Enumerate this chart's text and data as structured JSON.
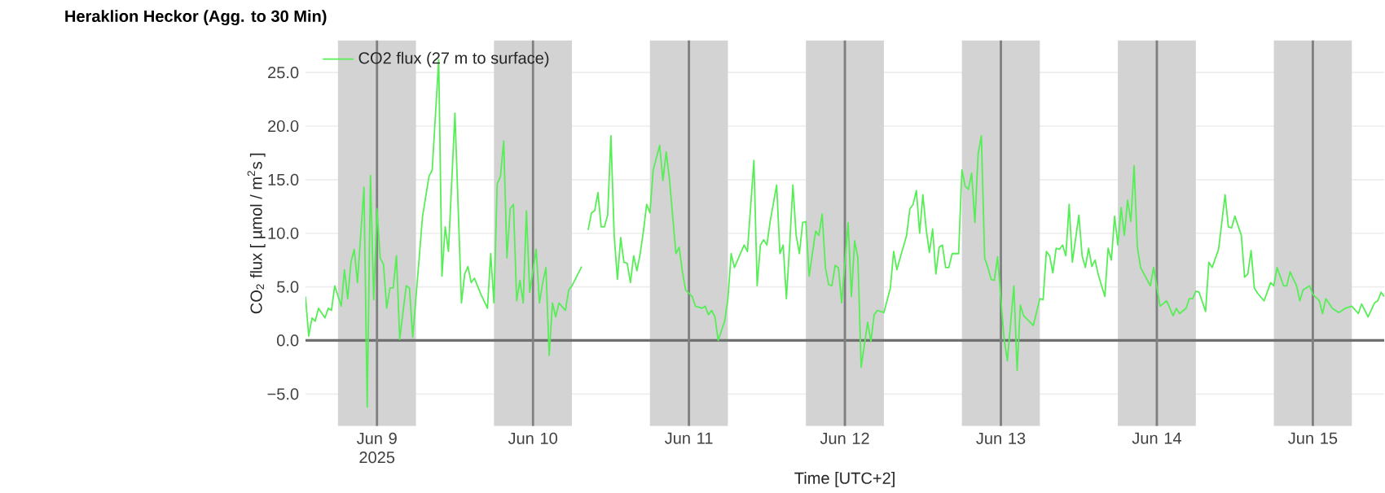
{
  "chart_data": {
    "type": "line",
    "title": "Heraklion Heckor (Agg. to 30 Min)",
    "xlabel": "Time [UTC+2]",
    "ylabel": "CO$_{2}$ flux [ µmol / m$^{2}$s ]",
    "xlim": [
      "2025-06-08T13:00",
      "2025-06-15T11:00"
    ],
    "ylim": [
      -8,
      28
    ],
    "xticks": [
      {
        "value": "2025-06-09",
        "label": "Jun 9 2025"
      },
      {
        "value": "2025-06-10",
        "label": "Jun 10"
      },
      {
        "value": "2025-06-11",
        "label": "Jun 11"
      },
      {
        "value": "2025-06-12",
        "label": "Jun 12"
      },
      {
        "value": "2025-06-13",
        "label": "Jun 13"
      },
      {
        "value": "2025-06-14",
        "label": "Jun 14"
      },
      {
        "value": "2025-06-15",
        "label": "Jun 15"
      }
    ],
    "yticks": [
      {
        "value": -5,
        "label": "−5.0"
      },
      {
        "value": 0,
        "label": "0.0"
      },
      {
        "value": 5,
        "label": "5.0"
      },
      {
        "value": 10,
        "label": "10.0"
      },
      {
        "value": 15,
        "label": "15.0"
      },
      {
        "value": 20,
        "label": "20.0"
      },
      {
        "value": 25,
        "label": "25.0"
      }
    ],
    "grid": "y",
    "legend": "top left",
    "bands": [
      {
        "axis": "x",
        "from": "2025-06-08T18:00",
        "to": "2025-06-09T06:00",
        "color": "#d3d3d3"
      },
      {
        "axis": "x",
        "from": "2025-06-09T18:00",
        "to": "2025-06-10T06:00",
        "color": "#d3d3d3"
      },
      {
        "axis": "x",
        "from": "2025-06-10T18:00",
        "to": "2025-06-11T06:00",
        "color": "#d3d3d3"
      },
      {
        "axis": "x",
        "from": "2025-06-11T18:00",
        "to": "2025-06-12T06:00",
        "color": "#d3d3d3"
      },
      {
        "axis": "x",
        "from": "2025-06-12T18:00",
        "to": "2025-06-13T06:00",
        "color": "#d3d3d3"
      },
      {
        "axis": "x",
        "from": "2025-06-13T18:00",
        "to": "2025-06-14T06:00",
        "color": "#d3d3d3"
      },
      {
        "axis": "x",
        "from": "2025-06-14T18:00",
        "to": "2025-06-15T06:00",
        "color": "#d3d3d3"
      }
    ],
    "ref_lines": [
      {
        "axis": "y",
        "value": 0,
        "color": "#707070"
      },
      {
        "axis": "x",
        "value": "2025-06-09",
        "color": "#808080"
      },
      {
        "axis": "x",
        "value": "2025-06-10",
        "color": "#808080"
      },
      {
        "axis": "x",
        "value": "2025-06-11",
        "color": "#808080"
      },
      {
        "axis": "x",
        "value": "2025-06-12",
        "color": "#808080"
      },
      {
        "axis": "x",
        "value": "2025-06-13",
        "color": "#808080"
      },
      {
        "axis": "x",
        "value": "2025-06-14",
        "color": "#808080"
      },
      {
        "axis": "x",
        "value": "2025-06-15",
        "color": "#808080"
      }
    ],
    "x": [
      "2025-06-08T13:00",
      "2025-06-08T13:30",
      "2025-06-08T14:00",
      "2025-06-08T14:30",
      "2025-06-08T15:00",
      "2025-06-08T16:00",
      "2025-06-08T16:30",
      "2025-06-08T17:00",
      "2025-06-08T17:30",
      "2025-06-08T18:30",
      "2025-06-08T19:00",
      "2025-06-08T19:30",
      "2025-06-08T20:00",
      "2025-06-08T20:30",
      "2025-06-08T21:00",
      "2025-06-08T22:00",
      "2025-06-08T22:30",
      "2025-06-08T23:00",
      "2025-06-08T23:30",
      "2025-06-09T00:00",
      "2025-06-09T00:30",
      "2025-06-09T01:00",
      "2025-06-09T01:30",
      "2025-06-09T02:00",
      "2025-06-09T02:30",
      "2025-06-09T03:00",
      "2025-06-09T03:30",
      "2025-06-09T04:30",
      "2025-06-09T05:00",
      "2025-06-09T05:30",
      "2025-06-09T06:30",
      "2025-06-09T07:00",
      "2025-06-09T08:00",
      "2025-06-09T08:30",
      "2025-06-09T09:30",
      "2025-06-09T10:00",
      "2025-06-09T10:30",
      "2025-06-09T11:00",
      "2025-06-09T12:00",
      "2025-06-09T13:00",
      "2025-06-09T13:30",
      "2025-06-09T14:00",
      "2025-06-09T14:30",
      "2025-06-09T15:00",
      "2025-06-09T16:00",
      "2025-06-09T17:00",
      "2025-06-09T17:30",
      "2025-06-09T18:00",
      "2025-06-09T18:30",
      "2025-06-09T19:00",
      "2025-06-09T19:30",
      "2025-06-09T20:00",
      "2025-06-09T20:30",
      "2025-06-09T21:00",
      "2025-06-09T21:30",
      "2025-06-09T22:00",
      "2025-06-09T22:30",
      "2025-06-09T23:00",
      "2025-06-09T23:30",
      "2025-06-10T00:30",
      "2025-06-10T01:00",
      "2025-06-10T01:30",
      "2025-06-10T02:00",
      "2025-06-10T02:30",
      "2025-06-10T03:00",
      "2025-06-10T03:30",
      "2025-06-10T04:00",
      "2025-06-10T05:00",
      "2025-06-10T05:30",
      "2025-06-10T06:00",
      "2025-06-10T07:30",
      "2025-06-10T08:00",
      "2025-06-10T08:30",
      "2025-06-10T09:00",
      "2025-06-10T09:30",
      "2025-06-10T10:00",
      "2025-06-10T10:30",
      "2025-06-10T11:00",
      "2025-06-10T11:30",
      "2025-06-10T12:00",
      "2025-06-10T12:30",
      "2025-06-10T13:00",
      "2025-06-10T13:30",
      "2025-06-10T14:00",
      "2025-06-10T14:30",
      "2025-06-10T15:00",
      "2025-06-10T15:30",
      "2025-06-10T16:00",
      "2025-06-10T16:30",
      "2025-06-10T17:00",
      "2025-06-10T17:30",
      "2025-06-10T18:00",
      "2025-06-10T18:30",
      "2025-06-10T19:30",
      "2025-06-10T20:00",
      "2025-06-10T20:30",
      "2025-06-10T21:00",
      "2025-06-10T22:00",
      "2025-06-10T22:30",
      "2025-06-10T23:00",
      "2025-06-10T23:30",
      "2025-06-11T00:30",
      "2025-06-11T01:00",
      "2025-06-11T02:00",
      "2025-06-11T02:30",
      "2025-06-11T03:00",
      "2025-06-11T03:30",
      "2025-06-11T04:00",
      "2025-06-11T04:30",
      "2025-06-11T05:30",
      "2025-06-11T06:00",
      "2025-06-11T06:30",
      "2025-06-11T07:00",
      "2025-06-11T07:30",
      "2025-06-11T08:30",
      "2025-06-11T09:00",
      "2025-06-11T09:30",
      "2025-06-11T10:00",
      "2025-06-11T10:30",
      "2025-06-11T11:00",
      "2025-06-11T11:30",
      "2025-06-11T12:00",
      "2025-06-11T12:30",
      "2025-06-11T13:30",
      "2025-06-11T14:00",
      "2025-06-11T14:30",
      "2025-06-11T15:00",
      "2025-06-11T15:30",
      "2025-06-11T16:00",
      "2025-06-11T16:30",
      "2025-06-11T17:00",
      "2025-06-11T17:30",
      "2025-06-11T18:00",
      "2025-06-11T18:30",
      "2025-06-11T19:30",
      "2025-06-11T20:00",
      "2025-06-11T20:30",
      "2025-06-11T21:00",
      "2025-06-11T21:30",
      "2025-06-11T22:00",
      "2025-06-11T22:30",
      "2025-06-11T23:00",
      "2025-06-11T23:30",
      "2025-06-12T00:30",
      "2025-06-12T01:00",
      "2025-06-12T01:30",
      "2025-06-12T02:00",
      "2025-06-12T02:30",
      "2025-06-12T03:30",
      "2025-06-12T04:00",
      "2025-06-12T04:30",
      "2025-06-12T05:00",
      "2025-06-12T06:00",
      "2025-06-12T07:00",
      "2025-06-12T07:30",
      "2025-06-12T08:00",
      "2025-06-12T08:30",
      "2025-06-12T09:30",
      "2025-06-12T10:00",
      "2025-06-12T10:30",
      "2025-06-12T11:00",
      "2025-06-12T11:30",
      "2025-06-12T12:00",
      "2025-06-12T12:30",
      "2025-06-12T13:00",
      "2025-06-12T13:30",
      "2025-06-12T14:00",
      "2025-06-12T14:30",
      "2025-06-12T15:00",
      "2025-06-12T15:30",
      "2025-06-12T16:00",
      "2025-06-12T16:30",
      "2025-06-12T17:30",
      "2025-06-12T18:00",
      "2025-06-12T18:30",
      "2025-06-12T19:00",
      "2025-06-12T19:30",
      "2025-06-12T20:00",
      "2025-06-12T20:30",
      "2025-06-12T21:00",
      "2025-06-12T21:30",
      "2025-06-12T22:00",
      "2025-06-12T22:30",
      "2025-06-12T23:00",
      "2025-06-12T23:30",
      "2025-06-13T00:00",
      "2025-06-13T00:30",
      "2025-06-13T01:00",
      "2025-06-13T02:00",
      "2025-06-13T02:30",
      "2025-06-13T03:00",
      "2025-06-13T03:30",
      "2025-06-13T04:00",
      "2025-06-13T05:00",
      "2025-06-13T06:00",
      "2025-06-13T06:30",
      "2025-06-13T07:00",
      "2025-06-13T07:30",
      "2025-06-13T08:00",
      "2025-06-13T08:30",
      "2025-06-13T09:00",
      "2025-06-13T09:30",
      "2025-06-13T10:00",
      "2025-06-13T10:30",
      "2025-06-13T11:00",
      "2025-06-13T12:00",
      "2025-06-13T12:30",
      "2025-06-13T13:00",
      "2025-06-13T13:30",
      "2025-06-13T14:00",
      "2025-06-13T14:30",
      "2025-06-13T15:00",
      "2025-06-13T16:00",
      "2025-06-13T16:30",
      "2025-06-13T17:00",
      "2025-06-13T17:30",
      "2025-06-13T18:00",
      "2025-06-13T18:30",
      "2025-06-13T19:00",
      "2025-06-13T19:30",
      "2025-06-13T20:00",
      "2025-06-13T20:30",
      "2025-06-13T21:00",
      "2025-06-13T21:30",
      "2025-06-13T23:00",
      "2025-06-13T23:30",
      "2025-06-14T00:30",
      "2025-06-14T01:30",
      "2025-06-14T02:30",
      "2025-06-14T03:00",
      "2025-06-14T03:30",
      "2025-06-14T04:30",
      "2025-06-14T05:00",
      "2025-06-14T05:30",
      "2025-06-14T06:00",
      "2025-06-14T06:30",
      "2025-06-14T07:30",
      "2025-06-14T08:00",
      "2025-06-14T08:30",
      "2025-06-14T09:30",
      "2025-06-14T10:30",
      "2025-06-14T11:00",
      "2025-06-14T11:30",
      "2025-06-14T12:00",
      "2025-06-14T13:00",
      "2025-06-14T13:30",
      "2025-06-14T14:00",
      "2025-06-14T14:30",
      "2025-06-14T15:00",
      "2025-06-14T15:30",
      "2025-06-14T16:30",
      "2025-06-14T17:30",
      "2025-06-14T18:00",
      "2025-06-14T18:30",
      "2025-06-14T19:30",
      "2025-06-14T20:00",
      "2025-06-14T20:30",
      "2025-06-14T21:30",
      "2025-06-14T22:00",
      "2025-06-14T22:30",
      "2025-06-14T23:30",
      "2025-06-15T00:00",
      "2025-06-15T01:00",
      "2025-06-15T01:30",
      "2025-06-15T02:00",
      "2025-06-15T03:00",
      "2025-06-15T04:00",
      "2025-06-15T05:00",
      "2025-06-15T06:00",
      "2025-06-15T07:00",
      "2025-06-15T07:30",
      "2025-06-15T08:30",
      "2025-06-15T09:30",
      "2025-06-15T10:00",
      "2025-06-15T10:30",
      "2025-06-15T11:00"
    ],
    "series": [
      {
        "name": "CO2 flux (27 m to surface)",
        "color": "#55ee55",
        "values": [
          4.1,
          0.4,
          2.1,
          1.8,
          3.0,
          2.1,
          3.0,
          2.8,
          5.1,
          3.2,
          6.6,
          3.9,
          7.3,
          8.5,
          5.4,
          14.3,
          -6.2,
          15.4,
          3.8,
          12.3,
          7.7,
          7.1,
          3.0,
          4.9,
          4.9,
          7.9,
          0.1,
          5.1,
          4.9,
          0.3,
          7.7,
          11.5,
          15.3,
          15.9,
          26.2,
          6.0,
          10.6,
          8.3,
          21.2,
          3.5,
          6.2,
          6.9,
          5.4,
          5.8,
          4.3,
          3.0,
          8.1,
          3.5,
          14.6,
          15.3,
          18.6,
          7.7,
          12.3,
          12.7,
          3.7,
          5.6,
          3.5,
          12.1,
          4.5,
          8.5,
          3.5,
          5.4,
          6.8,
          -1.4,
          3.5,
          2.2,
          3.5,
          2.8,
          4.7,
          5.1,
          6.9,
          null,
          10.3,
          11.9,
          12.1,
          13.8,
          10.6,
          10.6,
          11.7,
          19.1,
          9.8,
          5.7,
          9.6,
          7.3,
          7.2,
          5.4,
          7.9,
          6.5,
          8.1,
          10.2,
          12.7,
          11.9,
          15.9,
          18.2,
          14.9,
          17.6,
          15.1,
          8.1,
          8.7,
          6.4,
          4.7,
          4.1,
          3.2,
          3.0,
          3.2,
          2.4,
          2.8,
          2.2,
          0.0,
          1.8,
          3.9,
          8.1,
          6.8,
          7.5,
          8.9,
          8.3,
          12.5,
          16.8,
          5.1,
          8.9,
          9.4,
          8.9,
          11.1,
          14.5,
          8.1,
          8.9,
          3.9,
          8.9,
          14.5,
          9.8,
          8.1,
          11.0,
          11.1,
          6.0,
          10.2,
          9.8,
          11.8,
          6.8,
          5.2,
          5.1,
          7.0,
          6.8,
          3.5,
          11.0,
          4.1,
          9.3,
          7.7,
          -2.5,
          1.7,
          -0.1,
          2.4,
          2.8,
          2.6,
          4.9,
          8.3,
          6.6,
          7.7,
          9.8,
          12.3,
          12.7,
          14.0,
          10.0,
          13.6,
          10.4,
          8.2,
          10.4,
          6.2,
          8.7,
          8.9,
          6.8,
          6.8,
          8.1,
          8.1,
          15.9,
          14.4,
          14.1,
          15.6,
          11.0,
          17.4,
          19.1,
          7.7,
          6.8,
          5.7,
          5.6,
          7.8,
          3.9,
          0.1,
          -1.9,
          5.1,
          -2.8,
          3.3,
          2.3,
          2.0,
          1.4,
          3.9,
          3.8,
          8.3,
          7.9,
          6.3,
          8.6,
          8.5,
          8.9,
          7.9,
          12.7,
          7.3,
          11.7,
          7.9,
          6.8,
          8.6,
          6.9,
          7.5,
          6.1,
          4.1,
          8.6,
          7.5,
          11.6,
          8.9,
          12.4,
          9.8,
          13.1,
          11.1,
          16.3,
          8.7,
          6.8,
          5.1,
          6.8,
          3.2,
          3.7,
          2.3,
          3.0,
          2.5,
          3.0,
          3.9,
          3.9,
          4.6,
          4.5,
          2.7,
          7.3,
          6.8,
          8.5,
          13.6,
          10.6,
          10.5,
          11.6,
          9.8,
          5.9,
          6.2,
          8.4,
          4.9,
          4.4,
          3.7,
          5.4,
          5.1,
          6.8,
          5.1,
          5.1,
          6.4,
          5.1,
          3.7,
          4.7,
          5.1,
          4.3,
          3.7,
          2.5,
          3.9,
          3.0,
          2.6,
          3.0,
          3.2,
          2.5,
          3.4,
          2.2,
          3.5,
          3.7,
          4.5,
          4.1
        ]
      }
    ]
  }
}
